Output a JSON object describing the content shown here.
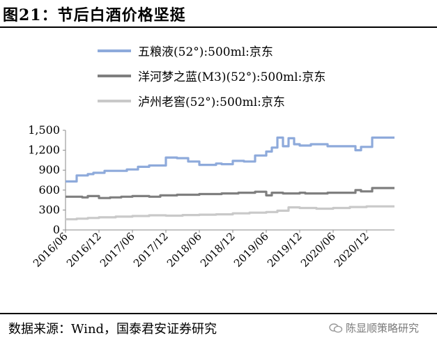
{
  "figure_title": "图21：节后白酒价格坚挺",
  "source_note": "数据来源：Wind，国泰君安证券研究",
  "watermark": "陈显顺策略研究",
  "chart_data": {
    "type": "line",
    "title": "",
    "xlabel": "",
    "ylabel": "",
    "ylim": [
      0,
      1500
    ],
    "yticks": [
      0,
      300,
      600,
      900,
      1200,
      1500
    ],
    "ytick_labels": [
      "0",
      "300",
      "600",
      "900",
      "1,200",
      "1,500"
    ],
    "xlim": [
      "2016-06",
      "2021-05"
    ],
    "xticks": [
      "2016-06",
      "2016-12",
      "2017-06",
      "2017-12",
      "2018-06",
      "2018-12",
      "2019-06",
      "2019-12",
      "2020-06",
      "2020-12"
    ],
    "xtick_labels": [
      "2016/06",
      "2016/12",
      "2017/06",
      "2017/12",
      "2018/06",
      "2018/12",
      "2019/06",
      "2019/12",
      "2020/06",
      "2020/12"
    ],
    "grid": false,
    "legend_position": "top",
    "series": [
      {
        "name": "五粮液(52°):500ml:京东",
        "color": "#8eaadb",
        "x": [
          "2016-06",
          "2016-08",
          "2016-08",
          "2016-10",
          "2016-10",
          "2016-11",
          "2016-11",
          "2017-01",
          "2017-01",
          "2017-05",
          "2017-05",
          "2017-07",
          "2017-07",
          "2017-09",
          "2017-09",
          "2017-12",
          "2017-12",
          "2018-02",
          "2018-02",
          "2018-04",
          "2018-04",
          "2018-06",
          "2018-06",
          "2018-09",
          "2018-09",
          "2018-10",
          "2018-10",
          "2018-12",
          "2018-12",
          "2019-02",
          "2019-02",
          "2019-04",
          "2019-04",
          "2019-06",
          "2019-06",
          "2019-07",
          "2019-07",
          "2019-08",
          "2019-08",
          "2019-09",
          "2019-09",
          "2019-10",
          "2019-10",
          "2019-11",
          "2019-11",
          "2019-12",
          "2019-12",
          "2020-02",
          "2020-02",
          "2020-05",
          "2020-05",
          "2020-10",
          "2020-10",
          "2020-11",
          "2020-11",
          "2021-01",
          "2021-01",
          "2021-05"
        ],
        "y": [
          730,
          730,
          820,
          820,
          840,
          840,
          860,
          860,
          890,
          890,
          910,
          910,
          950,
          950,
          970,
          970,
          1090,
          1090,
          1080,
          1080,
          1030,
          1030,
          980,
          980,
          1000,
          1000,
          990,
          990,
          1040,
          1040,
          1030,
          1030,
          1120,
          1120,
          1180,
          1180,
          1240,
          1240,
          1390,
          1390,
          1260,
          1260,
          1380,
          1380,
          1290,
          1290,
          1270,
          1270,
          1290,
          1290,
          1260,
          1260,
          1200,
          1200,
          1250,
          1250,
          1390,
          1390
        ]
      },
      {
        "name": "洋河梦之蓝(M3)(52°):500ml:京东",
        "color": "#7f7f7f",
        "x": [
          "2016-06",
          "2016-09",
          "2016-09",
          "2016-10",
          "2016-10",
          "2016-12",
          "2016-12",
          "2017-02",
          "2017-02",
          "2017-04",
          "2017-04",
          "2017-06",
          "2017-06",
          "2017-09",
          "2017-09",
          "2017-11",
          "2017-11",
          "2018-02",
          "2018-02",
          "2018-06",
          "2018-06",
          "2018-10",
          "2018-10",
          "2019-01",
          "2019-01",
          "2019-04",
          "2019-04",
          "2019-06",
          "2019-06",
          "2019-07",
          "2019-07",
          "2019-09",
          "2019-09",
          "2019-12",
          "2019-12",
          "2020-01",
          "2020-01",
          "2020-05",
          "2020-05",
          "2020-10",
          "2020-10",
          "2020-11",
          "2020-11",
          "2021-01",
          "2021-01",
          "2021-05"
        ],
        "y": [
          500,
          500,
          490,
          490,
          510,
          510,
          480,
          480,
          490,
          490,
          500,
          500,
          510,
          510,
          500,
          500,
          520,
          520,
          530,
          530,
          540,
          540,
          550,
          550,
          560,
          560,
          575,
          575,
          520,
          520,
          560,
          560,
          550,
          550,
          560,
          560,
          550,
          550,
          560,
          560,
          600,
          600,
          580,
          580,
          630,
          630
        ]
      },
      {
        "name": "泸州老窖(52°):500ml:京东",
        "color": "#c9c9c9",
        "x": [
          "2016-06",
          "2016-08",
          "2016-08",
          "2016-10",
          "2016-10",
          "2016-12",
          "2016-12",
          "2017-03",
          "2017-03",
          "2017-06",
          "2017-06",
          "2017-09",
          "2017-09",
          "2017-12",
          "2017-12",
          "2018-03",
          "2018-03",
          "2018-06",
          "2018-06",
          "2018-09",
          "2018-09",
          "2018-12",
          "2018-12",
          "2019-03",
          "2019-03",
          "2019-06",
          "2019-06",
          "2019-08",
          "2019-08",
          "2019-10",
          "2019-10",
          "2019-12",
          "2019-12",
          "2020-03",
          "2020-03",
          "2020-06",
          "2020-06",
          "2020-09",
          "2020-09",
          "2020-12",
          "2020-12",
          "2021-05"
        ],
        "y": [
          160,
          160,
          170,
          170,
          180,
          180,
          190,
          190,
          200,
          200,
          210,
          210,
          220,
          220,
          215,
          215,
          225,
          225,
          230,
          230,
          235,
          235,
          250,
          250,
          260,
          260,
          270,
          270,
          290,
          290,
          340,
          340,
          330,
          330,
          320,
          320,
          330,
          330,
          345,
          345,
          355,
          355
        ]
      }
    ]
  }
}
